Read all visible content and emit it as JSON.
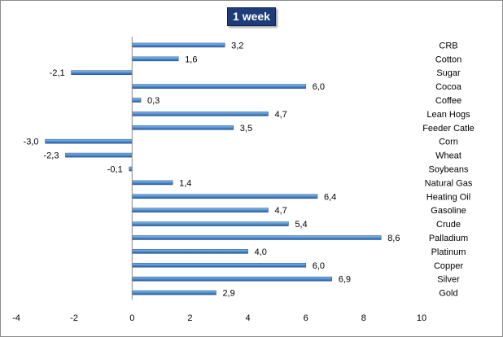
{
  "chart_data": {
    "type": "bar",
    "orientation": "horizontal",
    "title": "1 week",
    "categories": [
      "CRB",
      "Cotton",
      "Sugar",
      "Cocoa",
      "Coffee",
      "Lean Hogs",
      "Feeder Catle",
      "Corn",
      "Wheat",
      "Soybeans",
      "Natural Gas",
      "Heating Oil",
      "Gasoline",
      "Crude",
      "Palladium",
      "Platinum",
      "Copper",
      "Silver",
      "Gold"
    ],
    "values": [
      3.2,
      1.6,
      -2.1,
      6.0,
      0.3,
      4.7,
      3.5,
      -3.0,
      -2.3,
      -0.1,
      1.4,
      6.4,
      4.7,
      5.4,
      8.6,
      4.0,
      6.0,
      6.9,
      2.9
    ],
    "value_labels": [
      "3,2",
      "1,6",
      "-2,1",
      "6,0",
      "0,3",
      "4,7",
      "3,5",
      "-3,0",
      "-2,3",
      "-0,1",
      "1,4",
      "6,4",
      "4,7",
      "5,4",
      "8,6",
      "4,0",
      "6,0",
      "6,9",
      "2,9"
    ],
    "xlim": [
      -4,
      10
    ],
    "xticks": [
      -4,
      -2,
      0,
      2,
      4,
      6,
      8,
      10
    ],
    "xtick_labels": [
      "-4",
      "-2",
      "0",
      "2",
      "4",
      "6",
      "8",
      "10"
    ],
    "xlabel": "",
    "ylabel": "",
    "grid": false,
    "legend": "none",
    "bar_color": "#4f8fd0",
    "bar_edge_color": "#2b5a9b"
  }
}
